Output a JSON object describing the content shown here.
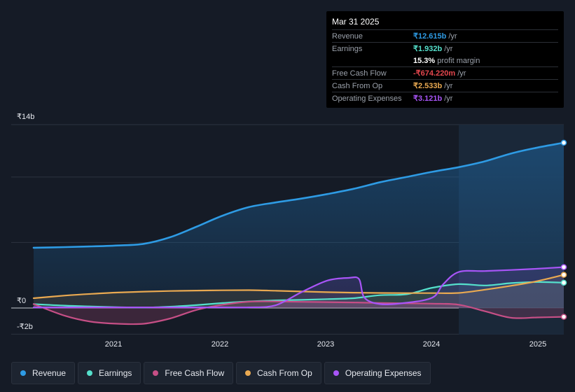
{
  "tooltip": {
    "date": "Mar 31 2025",
    "rows": [
      {
        "label": "Revenue",
        "value": "₹12.615b",
        "unit": "/yr",
        "color": "#2e9be4"
      },
      {
        "label": "Earnings",
        "value": "₹1.932b",
        "unit": "/yr",
        "color": "#55e0cc"
      },
      {
        "label": "",
        "value": "15.3%",
        "unit": "profit margin",
        "color": "#ffffff"
      },
      {
        "label": "Free Cash Flow",
        "value": "-₹674.220m",
        "unit": "/yr",
        "color": "#e5474e"
      },
      {
        "label": "Cash From Op",
        "value": "₹2.533b",
        "unit": "/yr",
        "color": "#e9a951"
      },
      {
        "label": "Operating Expenses",
        "value": "₹3.121b",
        "unit": "/yr",
        "color": "#a855f7"
      }
    ]
  },
  "axis": {
    "y_top": "₹14b",
    "y_zero": "₹0",
    "y_bottom": "-₹2b"
  },
  "legend": [
    {
      "label": "Revenue",
      "color": "#2e9be4"
    },
    {
      "label": "Earnings",
      "color": "#55e0cc"
    },
    {
      "label": "Free Cash Flow",
      "color": "#c64f86"
    },
    {
      "label": "Cash From Op",
      "color": "#e9a951"
    },
    {
      "label": "Operating Expenses",
      "color": "#a855f7"
    }
  ],
  "chart_data": {
    "type": "area",
    "x_ticks": [
      "2021",
      "2022",
      "2023",
      "2024",
      "2025"
    ],
    "ylim": [
      -2,
      14
    ],
    "y_unit": "₹ billions",
    "x_range": [
      2020.2,
      2025.25
    ],
    "highlight_from": 2024.25,
    "grid": true,
    "series": [
      {
        "name": "Revenue",
        "color": "#2e9be4",
        "fill": true,
        "x": [
          2020.2,
          2020.5,
          2020.75,
          2021.0,
          2021.25,
          2021.5,
          2021.75,
          2022.0,
          2022.25,
          2022.5,
          2022.75,
          2023.0,
          2023.25,
          2023.5,
          2023.75,
          2024.0,
          2024.25,
          2024.5,
          2024.75,
          2025.0,
          2025.25
        ],
        "y": [
          4.6,
          4.65,
          4.7,
          4.77,
          4.9,
          5.4,
          6.2,
          7.05,
          7.7,
          8.05,
          8.35,
          8.7,
          9.1,
          9.6,
          10.0,
          10.4,
          10.75,
          11.2,
          11.8,
          12.25,
          12.615
        ]
      },
      {
        "name": "Earnings",
        "color": "#55e0cc",
        "fill": true,
        "x": [
          2020.2,
          2020.5,
          2020.75,
          2021.0,
          2021.25,
          2021.5,
          2021.75,
          2022.0,
          2022.25,
          2022.5,
          2022.75,
          2023.0,
          2023.25,
          2023.5,
          2023.75,
          2024.0,
          2024.25,
          2024.5,
          2024.75,
          2025.0,
          2025.25
        ],
        "y": [
          0.3,
          0.18,
          0.12,
          0.06,
          0.03,
          0.1,
          0.22,
          0.38,
          0.5,
          0.58,
          0.62,
          0.68,
          0.75,
          0.98,
          1.05,
          1.55,
          1.82,
          1.72,
          1.9,
          1.98,
          1.932
        ]
      },
      {
        "name": "Free Cash Flow",
        "color": "#c64f86",
        "fill": true,
        "x": [
          2020.2,
          2020.5,
          2020.75,
          2021.0,
          2021.25,
          2021.5,
          2021.75,
          2022.0,
          2022.25,
          2022.5,
          2022.75,
          2023.0,
          2023.25,
          2023.5,
          2023.75,
          2024.0,
          2024.25,
          2024.5,
          2024.75,
          2025.0,
          2025.25
        ],
        "y": [
          0.3,
          -0.6,
          -1.05,
          -1.2,
          -1.2,
          -0.8,
          -0.15,
          0.25,
          0.48,
          0.5,
          0.47,
          0.45,
          0.42,
          0.38,
          0.36,
          0.33,
          0.25,
          -0.25,
          -0.75,
          -0.72,
          -0.674
        ]
      },
      {
        "name": "Cash From Op",
        "color": "#e9a951",
        "fill": true,
        "x": [
          2020.2,
          2020.5,
          2020.75,
          2021.0,
          2021.25,
          2021.5,
          2021.75,
          2022.0,
          2022.25,
          2022.5,
          2022.75,
          2023.0,
          2023.25,
          2023.5,
          2023.75,
          2024.0,
          2024.25,
          2024.5,
          2024.75,
          2025.0,
          2025.25
        ],
        "y": [
          0.75,
          0.95,
          1.08,
          1.18,
          1.25,
          1.3,
          1.33,
          1.35,
          1.36,
          1.32,
          1.26,
          1.21,
          1.17,
          1.15,
          1.14,
          1.14,
          1.15,
          1.4,
          1.7,
          2.05,
          2.533
        ]
      },
      {
        "name": "Operating Expenses",
        "color": "#a855f7",
        "fill": true,
        "x": [
          2020.2,
          2020.5,
          2020.75,
          2021.0,
          2021.25,
          2021.5,
          2021.75,
          2022.0,
          2022.25,
          2022.5,
          2022.75,
          2023.0,
          2023.2,
          2023.3,
          2023.35,
          2023.5,
          2023.75,
          2024.0,
          2024.1,
          2024.25,
          2024.5,
          2024.75,
          2025.0,
          2025.25
        ],
        "y": [
          0.05,
          0.05,
          0.05,
          0.05,
          0.05,
          0.05,
          0.05,
          0.05,
          0.05,
          0.2,
          1.2,
          2.1,
          2.3,
          2.2,
          0.8,
          0.3,
          0.4,
          0.8,
          1.8,
          2.75,
          2.82,
          2.9,
          3.0,
          3.121
        ]
      }
    ]
  }
}
